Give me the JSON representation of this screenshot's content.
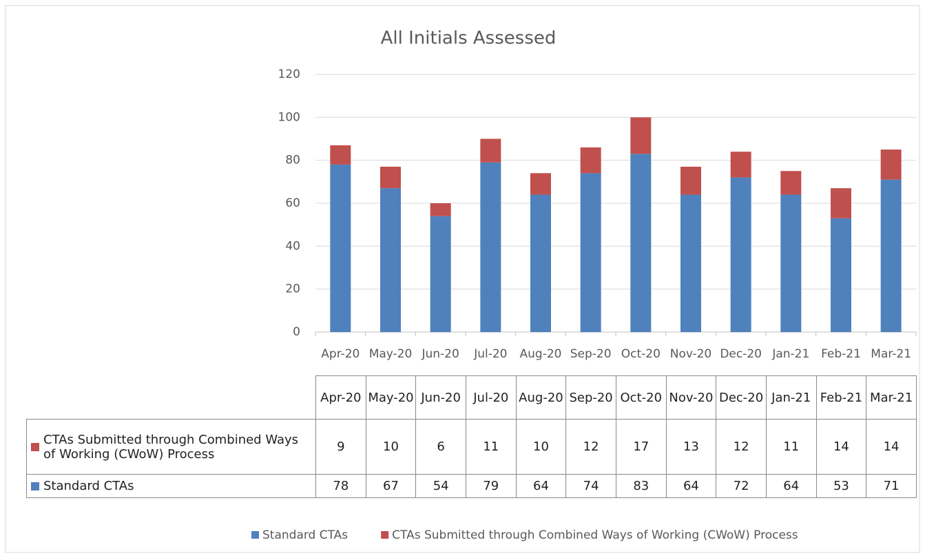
{
  "chart_data": {
    "type": "stacked_bar",
    "title": "All Initials Assessed",
    "categories": [
      "Apr-20",
      "May-20",
      "Jun-20",
      "Jul-20",
      "Aug-20",
      "Sep-20",
      "Oct-20",
      "Nov-20",
      "Dec-20",
      "Jan-21",
      "Feb-21",
      "Mar-21"
    ],
    "series": [
      {
        "name": "Standard CTAs",
        "color": "#4f81bd",
        "values": [
          78,
          67,
          54,
          79,
          64,
          74,
          83,
          64,
          72,
          64,
          53,
          71
        ]
      },
      {
        "name": "CTAs Submitted through Combined Ways of Working (CWoW) Process",
        "color": "#c0504d",
        "values": [
          9,
          10,
          6,
          11,
          10,
          12,
          17,
          13,
          12,
          11,
          14,
          14
        ]
      }
    ],
    "ylim": [
      0,
      120
    ],
    "yticks": [
      0,
      20,
      40,
      60,
      80,
      100,
      120
    ],
    "grid": true
  }
}
